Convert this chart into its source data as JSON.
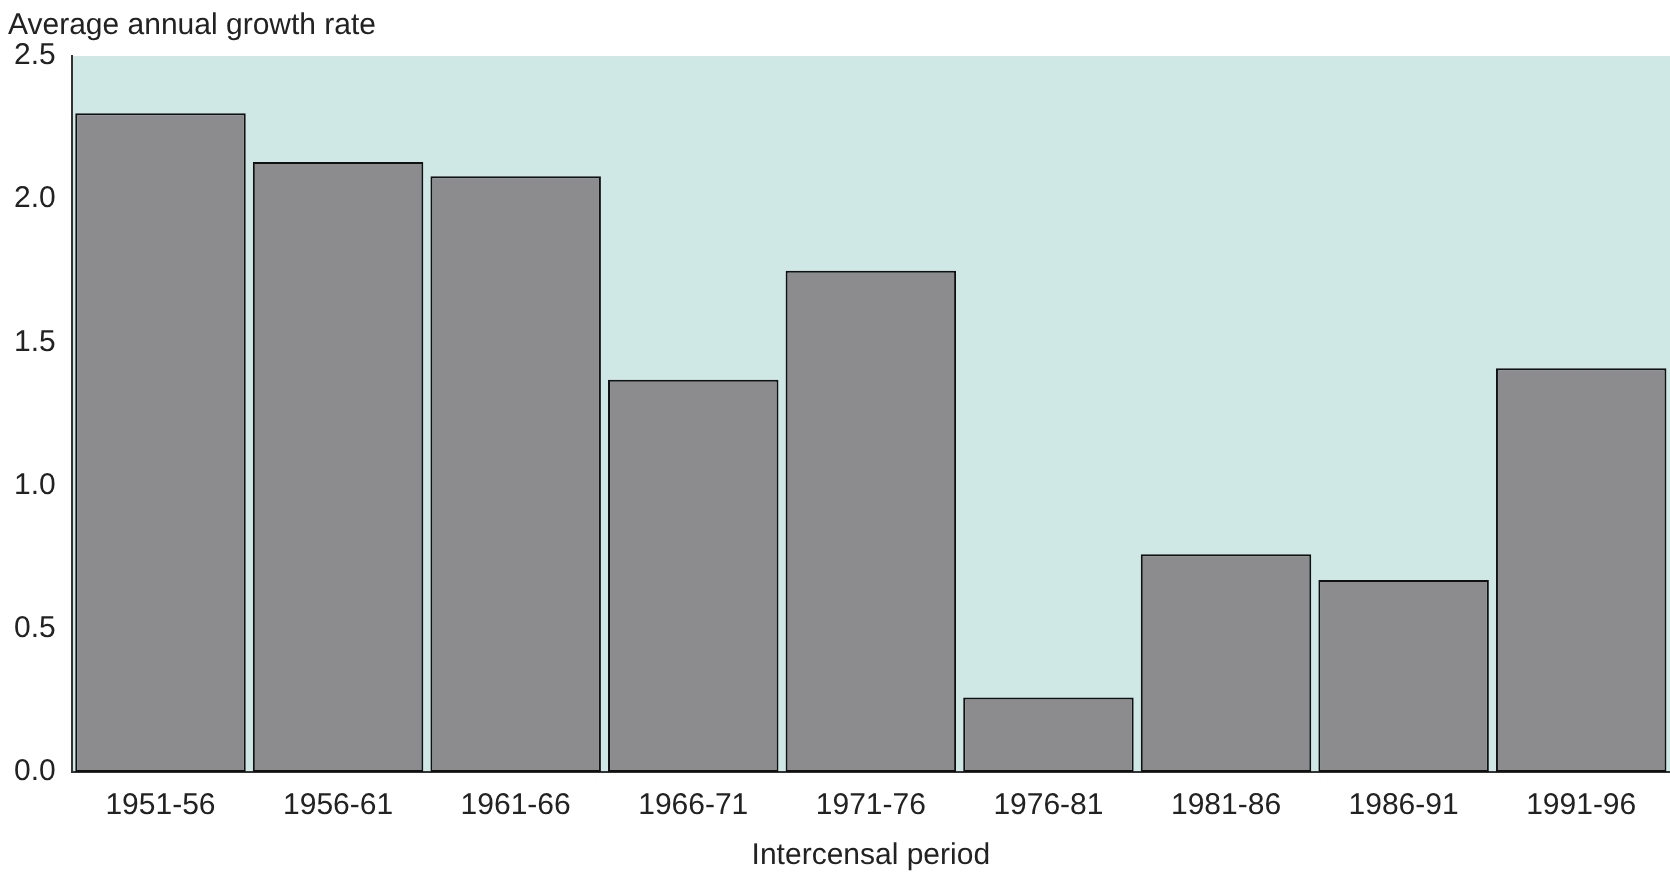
{
  "chart_data": {
    "type": "bar",
    "ylabel": "Average annual growth rate",
    "xlabel": "Intercensal period",
    "categories": [
      "1951-56",
      "1956-61",
      "1961-66",
      "1966-71",
      "1971-76",
      "1976-81",
      "1981-86",
      "1986-91",
      "1991-96"
    ],
    "values": [
      2.3,
      2.13,
      2.08,
      1.37,
      1.75,
      0.26,
      0.76,
      0.67,
      1.41
    ],
    "color": "#8c8c8e",
    "ylim": [
      0,
      2.5
    ],
    "yticks": [
      {
        "value": 0,
        "label": "0.0"
      },
      {
        "value": 0.5,
        "label": "0.5"
      },
      {
        "value": 1,
        "label": "1.0"
      },
      {
        "value": 1.5,
        "label": "1.5"
      },
      {
        "value": 2,
        "label": "2.0"
      },
      {
        "value": 2.5,
        "label": "2.5"
      }
    ],
    "grid": false,
    "legend": false
  }
}
